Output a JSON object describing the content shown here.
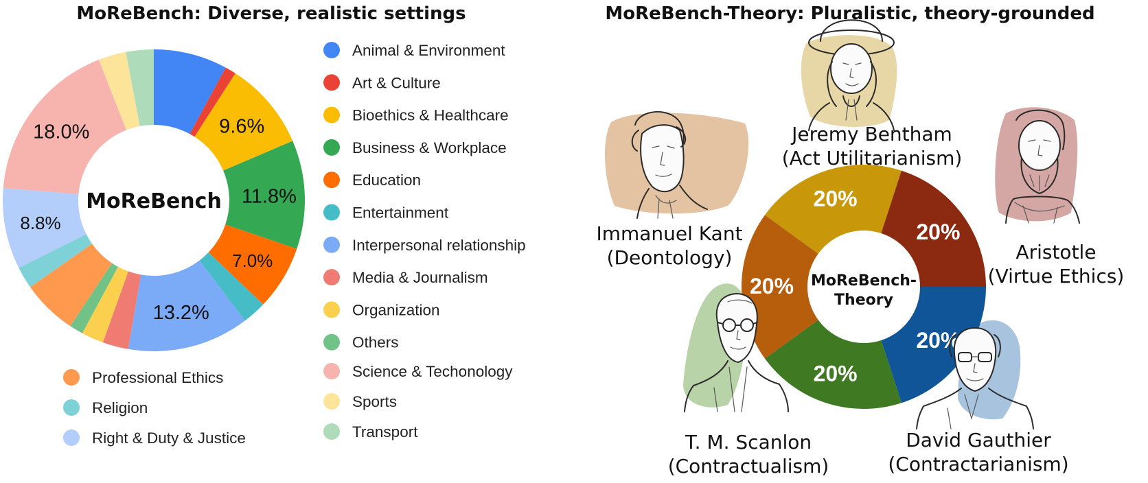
{
  "chart_data": [
    {
      "type": "pie",
      "title": "MoReBench: Diverse, realistic settings",
      "center_label": "MoReBench",
      "categories": [
        "Animal & Environment",
        "Art & Culture",
        "Bioethics & Healthcare",
        "Business & Workplace",
        "Education",
        "Entertainment",
        "Interpersonal relationship",
        "Media & Journalism",
        "Organization",
        "Others",
        "Professional Ethics",
        "Religion",
        "Right & Duty & Justice",
        "Science & Techonology",
        "Sports",
        "Transport"
      ],
      "values": [
        8.0,
        1.2,
        9.6,
        11.8,
        7.0,
        2.6,
        13.2,
        2.8,
        2.4,
        1.5,
        6.0,
        2.4,
        8.8,
        18.0,
        3.0,
        3.0
      ],
      "colors": [
        "#4285f4",
        "#ea4335",
        "#fbbc04",
        "#34a853",
        "#ff6d01",
        "#46bdc6",
        "#7baaf7",
        "#f07b72",
        "#fcd04f",
        "#71c287",
        "#ff994d",
        "#7ed1d7",
        "#b3cefb",
        "#f7b4ae",
        "#fde49b",
        "#aedcba"
      ],
      "data_labels": [
        "",
        "",
        "9.6%",
        "11.8%",
        "7.0%",
        "",
        "13.2%",
        "",
        "",
        "",
        "",
        "",
        "8.8%",
        "18.0%",
        "",
        ""
      ],
      "legend": {
        "right_column": [
          "Animal & Environment",
          "Art & Culture",
          "Bioethics & Healthcare",
          "Business & Workplace",
          "Education",
          "Entertainment",
          "Interpersonal relationship",
          "Media & Journalism",
          "Organization",
          "Others",
          "Science & Techonology",
          "Sports",
          "Transport"
        ],
        "bottom_column": [
          "Professional Ethics",
          "Religion",
          "Right & Duty & Justice"
        ]
      }
    },
    {
      "type": "pie",
      "title": "MoReBench-Theory: Pluralistic, theory-grounded",
      "center_label": [
        "MoReBench-",
        "Theory"
      ],
      "categories": [
        "Jeremy Bentham (Act Utilitarianism)",
        "Aristotle (Virtue Ethics)",
        "David Gauthier (Contractarianism)",
        "T. M. Scanlon (Contractualism)",
        "Immanuel Kant (Deontology)"
      ],
      "values": [
        20,
        20,
        20,
        20,
        20
      ],
      "data_labels": [
        "20%",
        "20%",
        "20%",
        "20%",
        "20%"
      ],
      "colors": [
        "#c9970a",
        "#8b2a10",
        "#0f5597",
        "#3f7a22",
        "#b65e0b"
      ]
    }
  ],
  "philosophers": [
    {
      "name": "Jeremy Bentham",
      "theory": "(Act Utilitarianism)",
      "backdrop": "#e8d7a6",
      "icon": "bentham-portrait-icon"
    },
    {
      "name": "Immanuel Kant",
      "theory": "(Deontology)",
      "backdrop": "#e3c3a2",
      "icon": "kant-portrait-icon"
    },
    {
      "name": "Aristotle",
      "theory": "(Virtue Ethics)",
      "backdrop": "#d4a7a4",
      "icon": "aristotle-portrait-icon"
    },
    {
      "name": "T. M. Scanlon",
      "theory": "(Contractualism)",
      "backdrop": "#b9d3a8",
      "icon": "scanlon-portrait-icon"
    },
    {
      "name": "David Gauthier",
      "theory": "(Contractarianism)",
      "backdrop": "#a8c3dd",
      "icon": "gauthier-portrait-icon"
    }
  ]
}
